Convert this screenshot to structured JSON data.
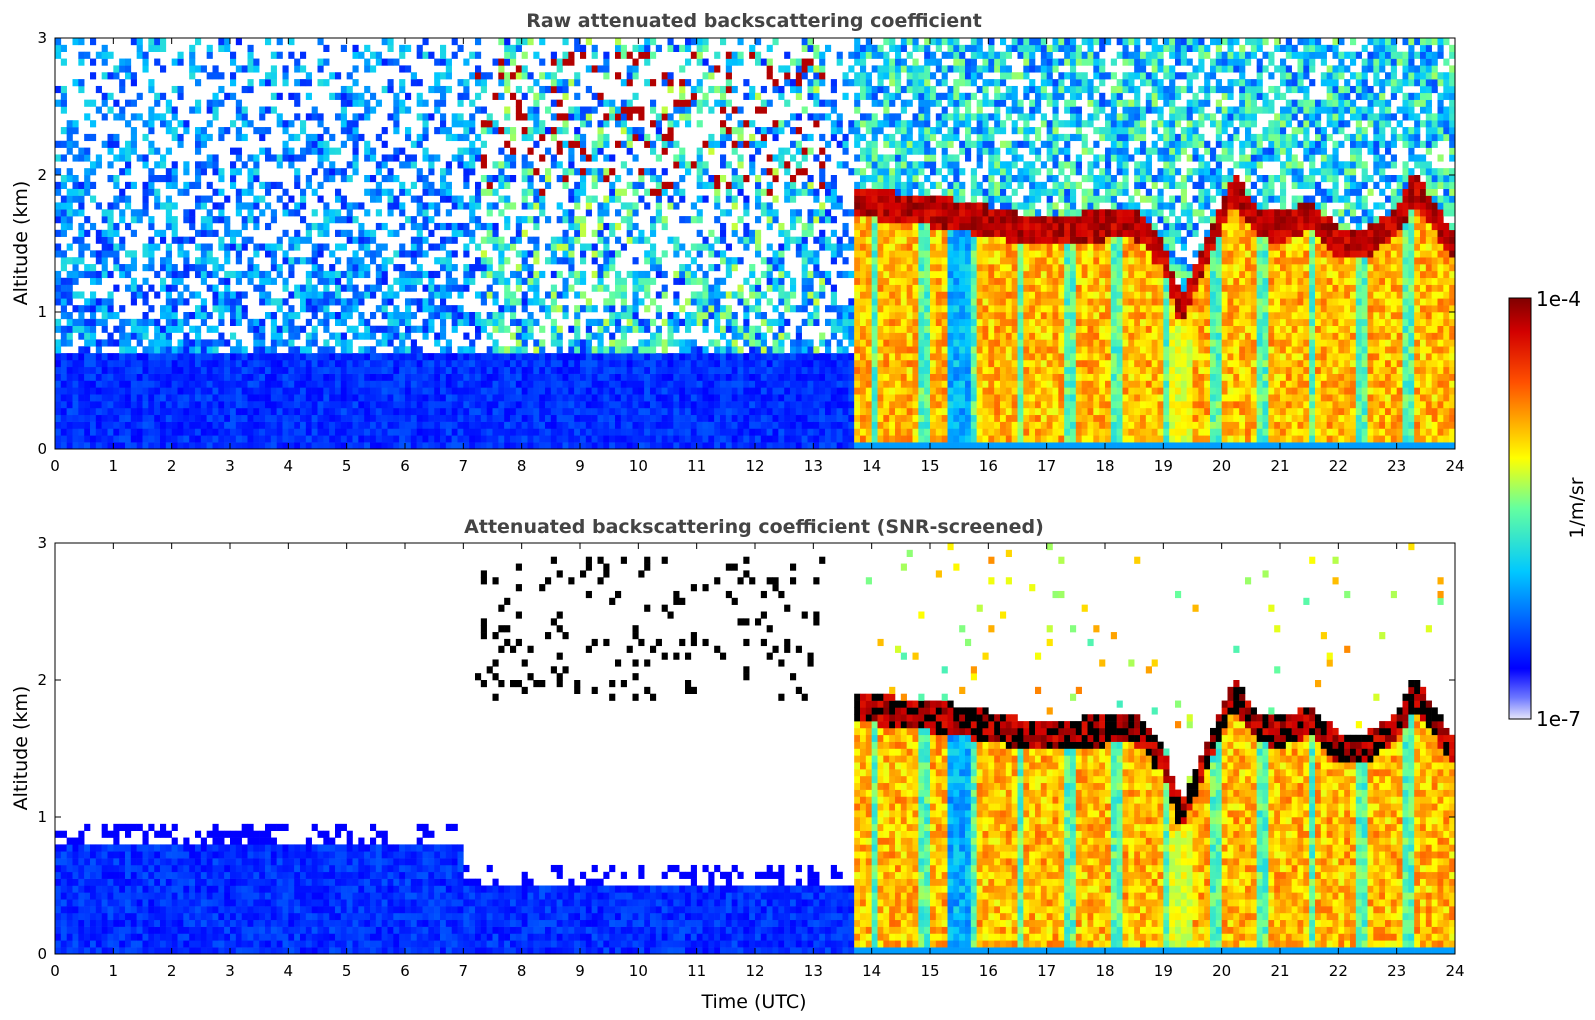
{
  "chart_data": [
    {
      "type": "heatmap",
      "title": "Raw attenuated backscattering coefficient",
      "ylabel": "Altitude (km)",
      "xlabel": "",
      "xlim": [
        0,
        24
      ],
      "ylim": [
        0,
        3
      ],
      "xticks": [
        0,
        1,
        2,
        3,
        4,
        5,
        6,
        7,
        8,
        9,
        10,
        11,
        12,
        13,
        14,
        15,
        16,
        17,
        18,
        19,
        20,
        21,
        22,
        23,
        24
      ],
      "yticks": [
        0,
        1,
        2,
        3
      ],
      "screened": false,
      "features": {
        "cloud_onset_utc": 13.75,
        "thin_cloud_utc": [
          7.25,
          13.2
        ],
        "cloud_base_km": [
          [
            13.8,
            1.8
          ],
          [
            14.5,
            1.75
          ],
          [
            15.5,
            1.7
          ],
          [
            16.5,
            1.6
          ],
          [
            17.5,
            1.6
          ],
          [
            18.5,
            1.65
          ],
          [
            19.0,
            1.4
          ],
          [
            19.3,
            1.0
          ],
          [
            19.6,
            1.3
          ],
          [
            20.2,
            1.9
          ],
          [
            20.6,
            1.65
          ],
          [
            21.0,
            1.6
          ],
          [
            21.5,
            1.7
          ],
          [
            22.0,
            1.5
          ],
          [
            22.5,
            1.5
          ],
          [
            23.0,
            1.65
          ],
          [
            23.3,
            1.9
          ],
          [
            23.7,
            1.65
          ],
          [
            24.0,
            1.45
          ]
        ]
      }
    },
    {
      "type": "heatmap",
      "title": "Attenuated backscattering coefficient (SNR-screened)",
      "ylabel": "Altitude (km)",
      "xlabel": "Time (UTC)",
      "xlim": [
        0,
        24
      ],
      "ylim": [
        0,
        3
      ],
      "xticks": [
        0,
        1,
        2,
        3,
        4,
        5,
        6,
        7,
        8,
        9,
        10,
        11,
        12,
        13,
        14,
        15,
        16,
        17,
        18,
        19,
        20,
        21,
        22,
        23,
        24
      ],
      "yticks": [
        0,
        1,
        2,
        3
      ],
      "screened": true
    }
  ],
  "colorbar": {
    "label": "1/m/sr",
    "max_label": "1e-4",
    "min_label": "1e-7",
    "colormap": "jet",
    "scale": "log"
  }
}
